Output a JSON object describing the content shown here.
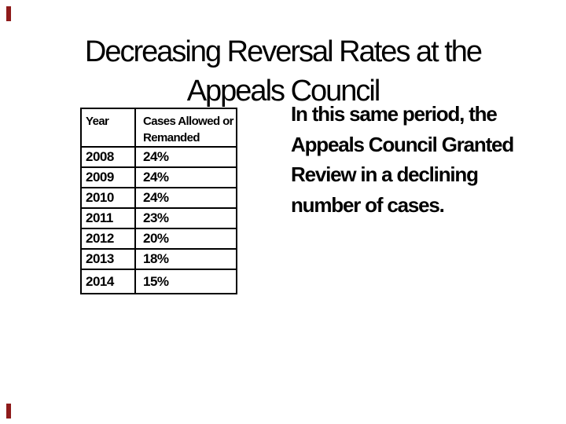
{
  "slide": {
    "title": {
      "line1": "Decreasing Reversal Rates at the",
      "line2": "Appeals Council"
    },
    "body": {
      "lines": [
        "In this same period, the",
        "Appeals Council Granted",
        "Review in a declining",
        "number of cases."
      ],
      "full_text": "In this same period, the Appeals Council Granted Review in a declining number of cases."
    },
    "table": {
      "headers": [
        "Year",
        "Cases Allowed or Remanded"
      ],
      "rows": [
        [
          "2008",
          "24%"
        ],
        [
          "2009",
          "24%"
        ],
        [
          "2010",
          "24%"
        ],
        [
          "2011",
          "23%"
        ],
        [
          "2012",
          "20%"
        ],
        [
          "2013",
          "18%"
        ],
        [
          "2014",
          "15%"
        ]
      ]
    },
    "colors": {
      "accent": "#8e1b1b",
      "text": "#000000",
      "table_border": "#000000",
      "background": "#ffffff"
    }
  },
  "chart_data": {
    "type": "table",
    "columns": [
      "Year",
      "Cases Allowed or Remanded"
    ],
    "categories": [
      "2008",
      "2009",
      "2010",
      "2011",
      "2012",
      "2013",
      "2014"
    ],
    "values_percent": [
      24,
      24,
      24,
      23,
      20,
      18,
      15
    ],
    "title": "Decreasing Reversal Rates at the Appeals Council"
  }
}
